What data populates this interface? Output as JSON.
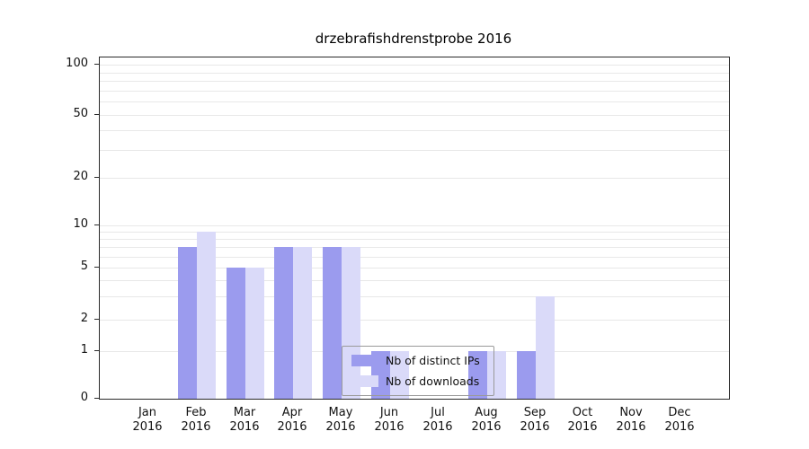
{
  "title": "drzebrafishdrenstprobe 2016",
  "chart_data": {
    "type": "bar",
    "title": "drzebrafishdrenstprobe 2016",
    "year": "2016",
    "categories": [
      "Jan",
      "Feb",
      "Mar",
      "Apr",
      "May",
      "Jun",
      "Jul",
      "Aug",
      "Sep",
      "Oct",
      "Nov",
      "Dec"
    ],
    "series": [
      {
        "name": "Nb of distinct IPs",
        "color": "#9b9bee",
        "values": [
          0,
          7,
          5,
          7,
          7,
          1,
          0,
          1,
          1,
          0,
          0,
          0
        ]
      },
      {
        "name": "Nb of downloads",
        "color": "#dadaf9",
        "values": [
          0,
          9,
          5,
          7,
          7,
          1,
          0,
          1,
          3,
          0,
          0,
          0
        ]
      }
    ],
    "y_ticks": [
      0,
      1,
      2,
      5,
      10,
      20,
      50,
      100
    ],
    "y_minor_gridlines": [
      1,
      2,
      3,
      4,
      5,
      6,
      7,
      8,
      9,
      10,
      20,
      30,
      40,
      50,
      60,
      70,
      80,
      90,
      100
    ],
    "ylim": [
      0,
      100
    ],
    "scale": "log-like",
    "grid": true,
    "legend_position": "lower center"
  }
}
